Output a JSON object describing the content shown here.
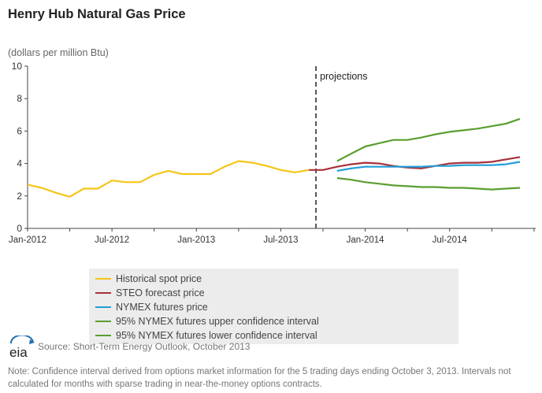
{
  "title": "Henry Hub Natural Gas Price",
  "y_unit_label": "(dollars per million Btu)",
  "projection_label": "projections",
  "source": "Source: Short-Term Energy Outlook, October 2013",
  "note": "Note: Confidence interval derived from options market information for the 5 trading days ending October 3, 2013. Intervals not calculated for months with sparse trading in near-the-money options contracts.",
  "logo_text": "eia",
  "chart_data": {
    "type": "line",
    "title": "Henry Hub Natural Gas Price",
    "ylabel": "(dollars per million Btu)",
    "xlabel": "",
    "ylim": [
      0,
      10
    ],
    "yticks": [
      0,
      2,
      4,
      6,
      8,
      10
    ],
    "xlim": [
      "2012-01",
      "2014-12"
    ],
    "xticks": [
      {
        "date": "2012-01",
        "label": "Jan-2012"
      },
      {
        "date": "2012-07",
        "label": "Jul-2012"
      },
      {
        "date": "2013-01",
        "label": "Jan-2013"
      },
      {
        "date": "2013-07",
        "label": "Jul-2013"
      },
      {
        "date": "2014-01",
        "label": "Jan-2014"
      },
      {
        "date": "2014-07",
        "label": "Jul-2014"
      }
    ],
    "projection_start": "2013-10",
    "grid": false,
    "legend_position": "bottom",
    "series": [
      {
        "name": "Historical spot price",
        "color": "#f5c518",
        "points": [
          [
            "2012-01",
            2.7
          ],
          [
            "2012-02",
            2.5
          ],
          [
            "2012-03",
            2.2
          ],
          [
            "2012-04",
            1.95
          ],
          [
            "2012-05",
            2.45
          ],
          [
            "2012-06",
            2.45
          ],
          [
            "2012-07",
            2.95
          ],
          [
            "2012-08",
            2.85
          ],
          [
            "2012-09",
            2.85
          ],
          [
            "2012-10",
            3.3
          ],
          [
            "2012-11",
            3.55
          ],
          [
            "2012-12",
            3.35
          ],
          [
            "2013-01",
            3.35
          ],
          [
            "2013-02",
            3.35
          ],
          [
            "2013-03",
            3.8
          ],
          [
            "2013-04",
            4.15
          ],
          [
            "2013-05",
            4.05
          ],
          [
            "2013-06",
            3.85
          ],
          [
            "2013-07",
            3.6
          ],
          [
            "2013-08",
            3.45
          ],
          [
            "2013-09",
            3.6
          ]
        ]
      },
      {
        "name": "STEO forecast price",
        "color": "#a8313a",
        "points": [
          [
            "2013-09",
            3.6
          ],
          [
            "2013-10",
            3.6
          ],
          [
            "2013-11",
            3.8
          ],
          [
            "2013-12",
            3.95
          ],
          [
            "2014-01",
            4.05
          ],
          [
            "2014-02",
            4.0
          ],
          [
            "2014-03",
            3.85
          ],
          [
            "2014-04",
            3.75
          ],
          [
            "2014-05",
            3.7
          ],
          [
            "2014-06",
            3.85
          ],
          [
            "2014-07",
            4.0
          ],
          [
            "2014-08",
            4.05
          ],
          [
            "2014-09",
            4.05
          ],
          [
            "2014-10",
            4.1
          ],
          [
            "2014-11",
            4.25
          ],
          [
            "2014-12",
            4.4
          ]
        ]
      },
      {
        "name": "NYMEX futures price",
        "color": "#1f9ed8",
        "points": [
          [
            "2013-11",
            3.55
          ],
          [
            "2013-12",
            3.7
          ],
          [
            "2014-01",
            3.8
          ],
          [
            "2014-02",
            3.8
          ],
          [
            "2014-03",
            3.8
          ],
          [
            "2014-04",
            3.8
          ],
          [
            "2014-05",
            3.8
          ],
          [
            "2014-06",
            3.85
          ],
          [
            "2014-07",
            3.85
          ],
          [
            "2014-08",
            3.9
          ],
          [
            "2014-09",
            3.9
          ],
          [
            "2014-10",
            3.9
          ],
          [
            "2014-11",
            3.95
          ],
          [
            "2014-12",
            4.1
          ]
        ]
      },
      {
        "name": "95% NYMEX futures upper confidence interval",
        "color": "#5a9e30",
        "points": [
          [
            "2013-11",
            4.15
          ],
          [
            "2013-12",
            4.6
          ],
          [
            "2014-01",
            5.05
          ],
          [
            "2014-02",
            5.25
          ],
          [
            "2014-03",
            5.45
          ],
          [
            "2014-04",
            5.45
          ],
          [
            "2014-05",
            5.6
          ],
          [
            "2014-06",
            5.8
          ],
          [
            "2014-07",
            5.95
          ],
          [
            "2014-08",
            6.05
          ],
          [
            "2014-09",
            6.15
          ],
          [
            "2014-10",
            6.3
          ],
          [
            "2014-11",
            6.45
          ],
          [
            "2014-12",
            6.75
          ]
        ]
      },
      {
        "name": "95% NYMEX futures lower confidence interval",
        "color": "#5a9e30",
        "points": [
          [
            "2013-11",
            3.1
          ],
          [
            "2013-12",
            3.0
          ],
          [
            "2014-01",
            2.85
          ],
          [
            "2014-02",
            2.75
          ],
          [
            "2014-03",
            2.65
          ],
          [
            "2014-04",
            2.6
          ],
          [
            "2014-05",
            2.55
          ],
          [
            "2014-06",
            2.55
          ],
          [
            "2014-07",
            2.5
          ],
          [
            "2014-08",
            2.5
          ],
          [
            "2014-09",
            2.45
          ],
          [
            "2014-10",
            2.4
          ],
          [
            "2014-11",
            2.45
          ],
          [
            "2014-12",
            2.5
          ]
        ]
      }
    ]
  }
}
